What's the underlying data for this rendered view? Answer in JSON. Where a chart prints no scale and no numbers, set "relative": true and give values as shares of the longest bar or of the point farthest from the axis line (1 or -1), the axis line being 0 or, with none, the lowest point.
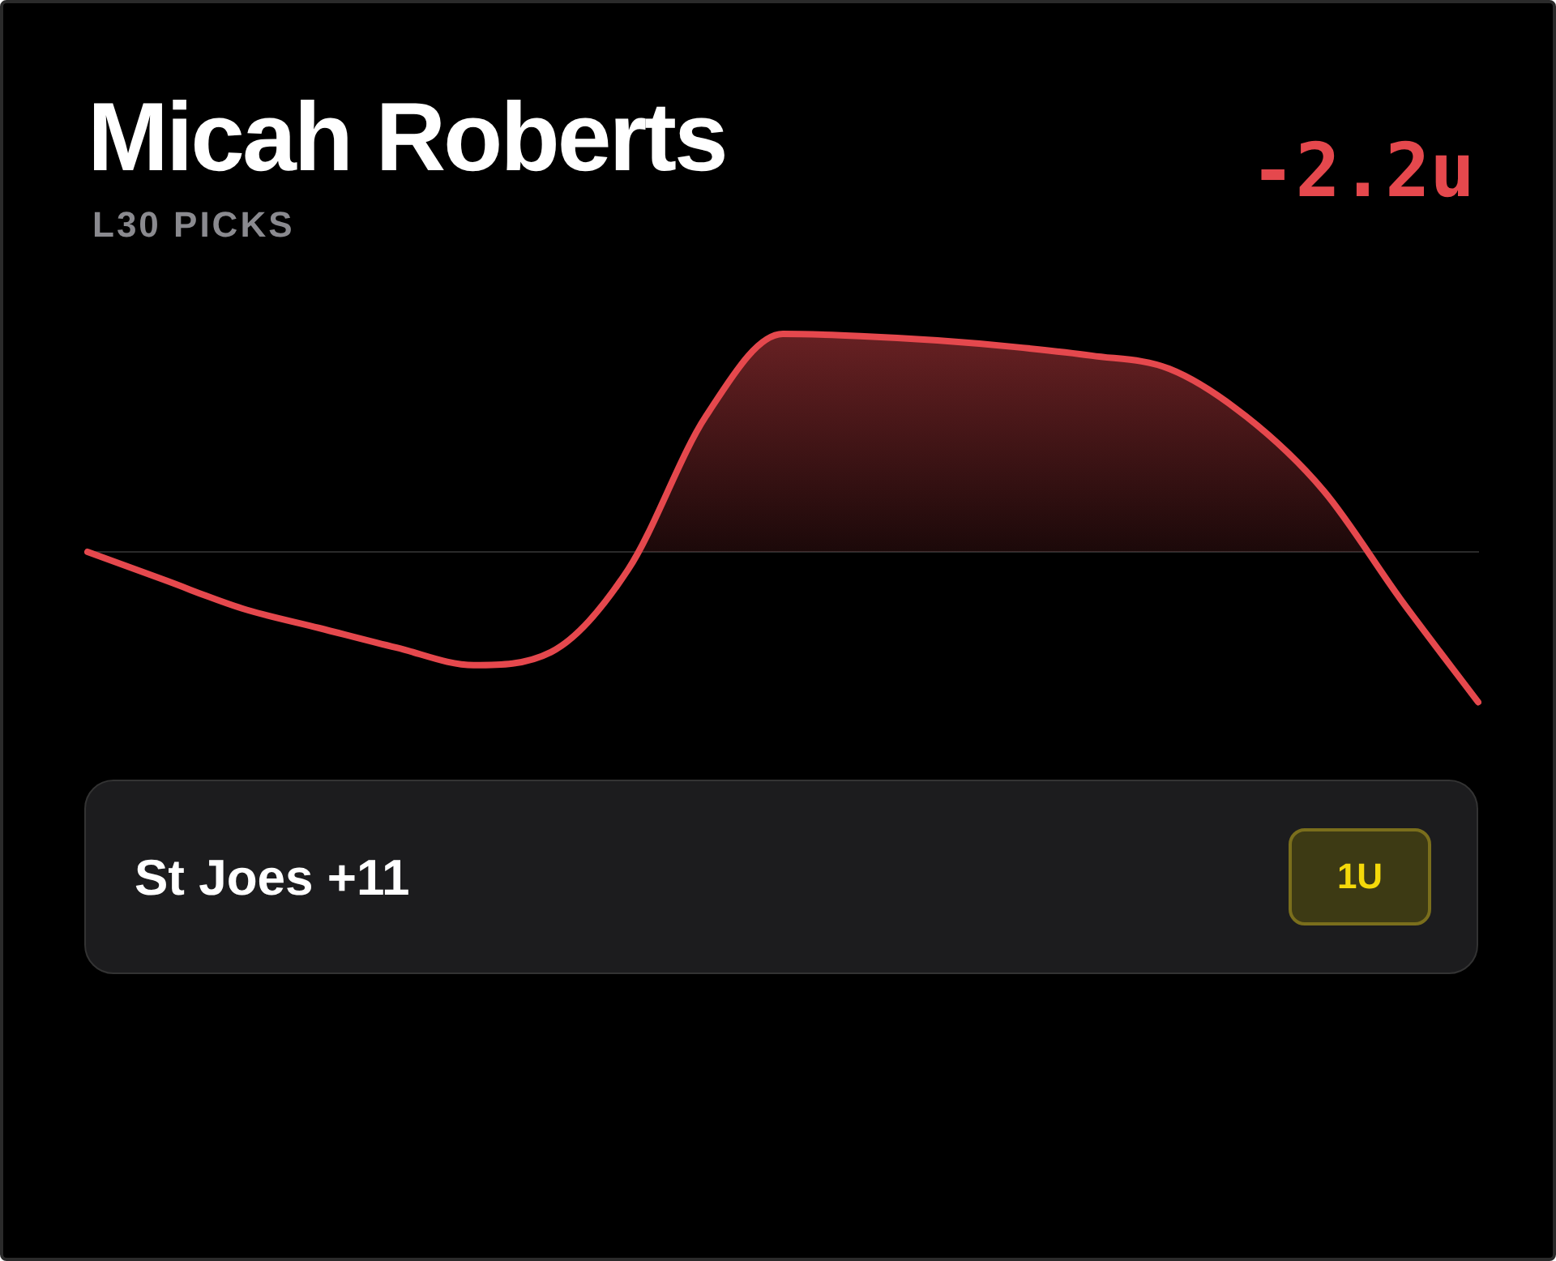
{
  "chart_data": {
    "type": "area",
    "title": "Micah Roberts",
    "subtitle": "L30 PICKS",
    "relative": true,
    "marker": "none",
    "categories": [
      null,
      null,
      null,
      null,
      null,
      null,
      null,
      null,
      null,
      null,
      null,
      null,
      null,
      null,
      null,
      null,
      null,
      null,
      null
    ],
    "series": [
      {
        "color": "#e5484d",
        "values": [
          0,
          -0.13,
          -0.26,
          -0.35,
          -0.44,
          -0.52,
          -0.46,
          -0.08,
          0.62,
          1.0,
          0.99,
          0.97,
          0.94,
          0.9,
          0.84,
          0.62,
          0.28,
          -0.22,
          -0.69
        ]
      }
    ],
    "annotations": [
      "-2.2u",
      "St Joes +11",
      "1U"
    ]
  }
}
